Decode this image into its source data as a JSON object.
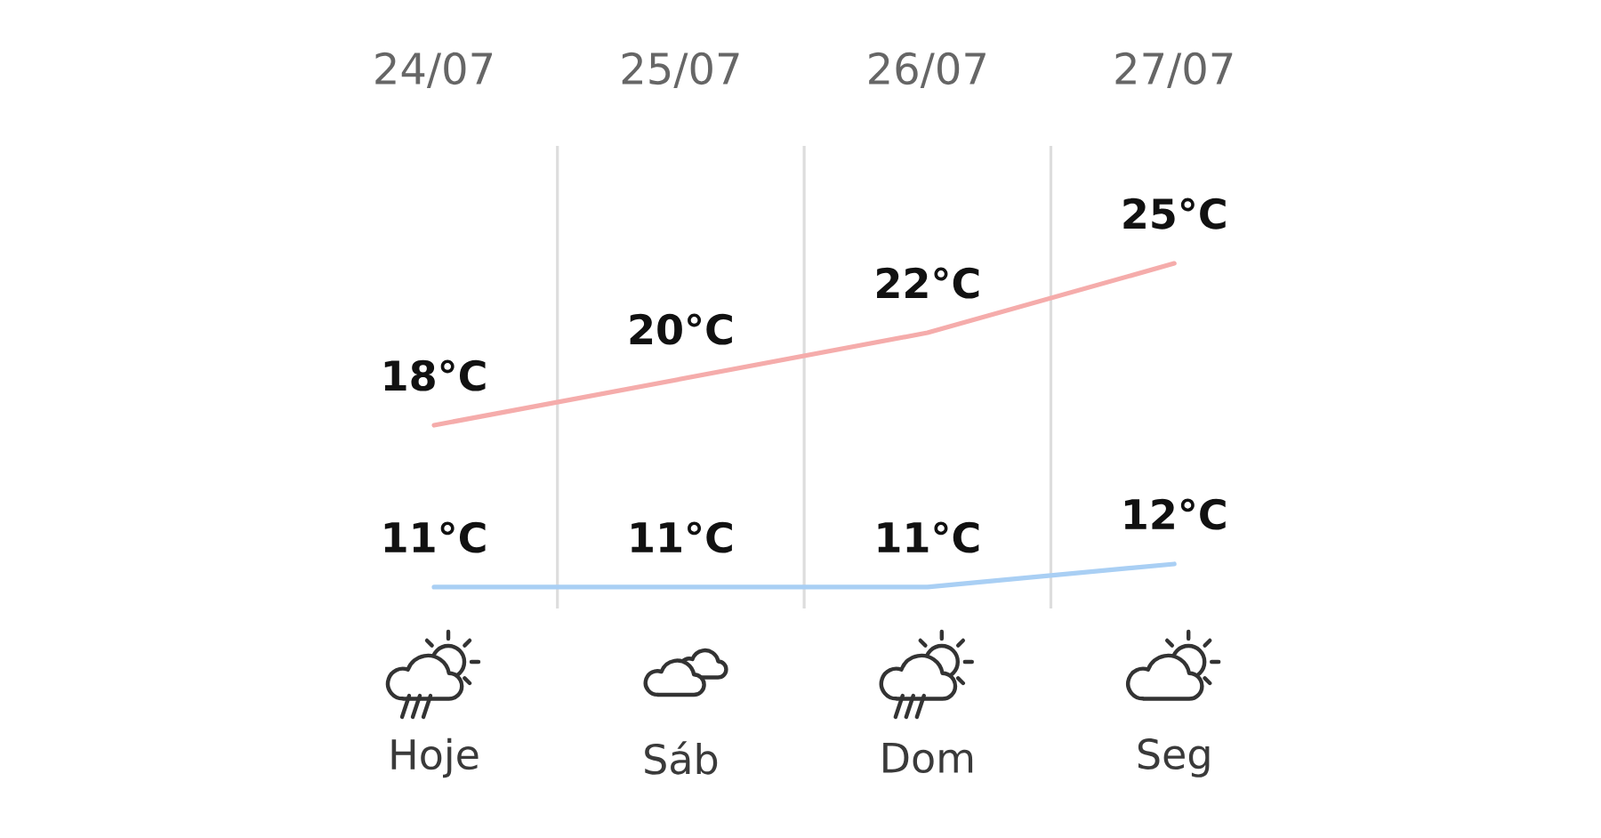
{
  "chart_data": {
    "type": "line",
    "categories": [
      "24/07",
      "25/07",
      "26/07",
      "27/07"
    ],
    "series": [
      {
        "color": "#f5acab",
        "values": [
          18,
          20,
          22,
          25
        ],
        "value_labels": [
          "18°C",
          "20°C",
          "22°C",
          "25°C"
        ]
      },
      {
        "color": "#a9cff4",
        "values": [
          11,
          11,
          11,
          12
        ],
        "value_labels": [
          "11°C",
          "11°C",
          "11°C",
          "12°C"
        ]
      }
    ],
    "grid": "x",
    "annotations": [
      "Hoje",
      "Sáb",
      "Dom",
      "Seg"
    ]
  }
}
